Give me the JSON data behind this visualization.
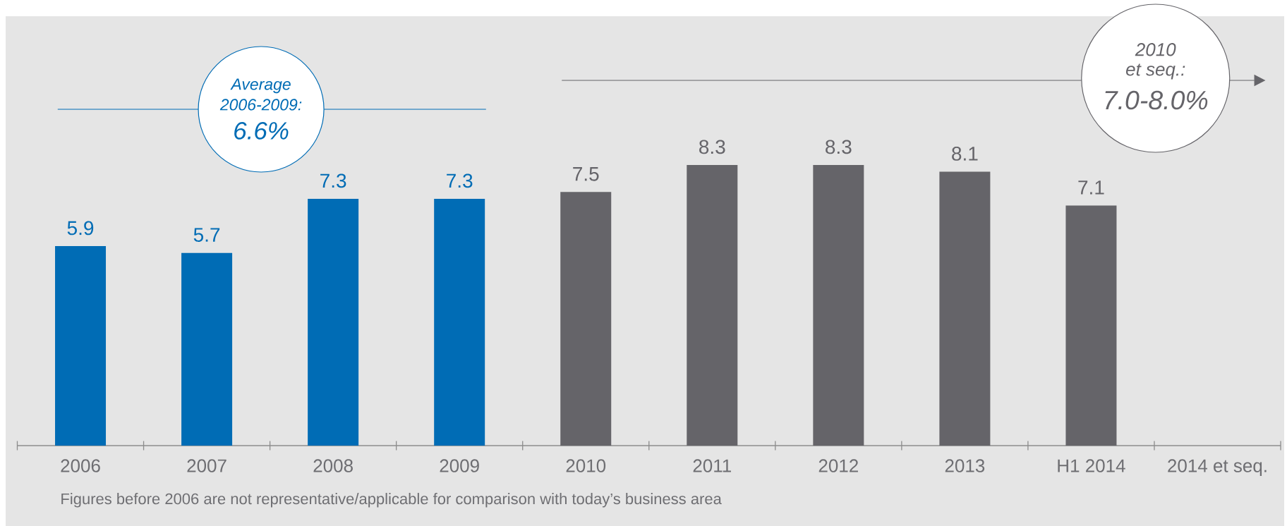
{
  "chart_data": {
    "type": "bar",
    "categories": [
      "2006",
      "2007",
      "2008",
      "2009",
      "2010",
      "2011",
      "2012",
      "2013",
      "H1 2014",
      "2014 et seq."
    ],
    "values": [
      5.9,
      5.7,
      7.3,
      7.3,
      7.5,
      8.3,
      8.3,
      8.1,
      7.1,
      null
    ],
    "colors": [
      "#006cb5",
      "#006cb5",
      "#006cb5",
      "#006cb5",
      "#656469",
      "#656469",
      "#656469",
      "#656469",
      "#656469",
      null
    ],
    "ylim": [
      0,
      12.7
    ],
    "data_labels": true,
    "annotations": [
      "Average 2006-2009:",
      "6.6%",
      "2010 et seq.:",
      "7.0-8.0%",
      "Figures before 2006 are not representative/applicable for comparison with today’s business area"
    ]
  }
}
